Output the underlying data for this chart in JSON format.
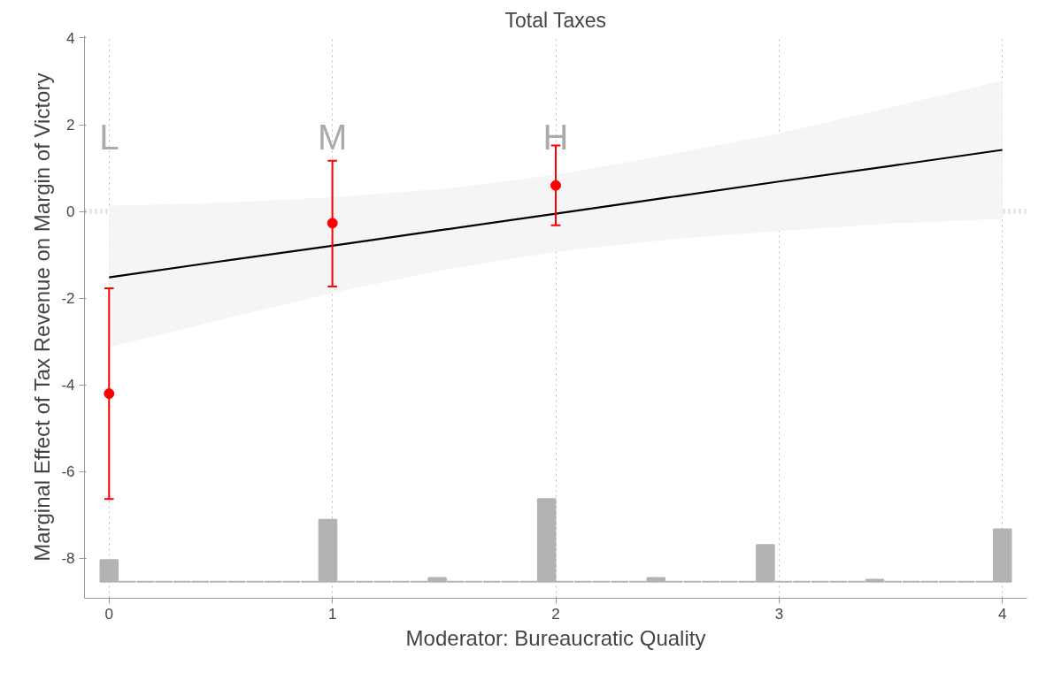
{
  "chart_data": {
    "type": "line",
    "title": "Total Taxes",
    "xlabel": "Moderator: Bureaucratic Quality",
    "ylabel": "Marginal Effect of Tax Revenue on Margin of Victory",
    "xlim": [
      -0.11,
      4.11
    ],
    "ylim": [
      -8.92,
      4.05
    ],
    "xticks": [
      0,
      1,
      2,
      3,
      4
    ],
    "yticks": [
      -8,
      -6,
      -4,
      -2,
      0,
      2,
      4
    ],
    "grid": "x",
    "ref_lines": [
      {
        "axis": "y",
        "value": 0,
        "color": "#dddddd",
        "line_style": "dotted"
      }
    ],
    "annotations": [
      "L",
      "M",
      "H"
    ],
    "series": [
      {
        "type": "bar",
        "color": "#b3b3b3",
        "x": [
          0,
          0.0816,
          0.1633,
          0.2449,
          0.3265,
          0.4082,
          0.4898,
          0.5714,
          0.6531,
          0.7347,
          0.8163,
          0.898,
          0.9796,
          1.0612,
          1.1429,
          1.2245,
          1.3061,
          1.3878,
          1.4694,
          1.551,
          1.6327,
          1.7143,
          1.7959,
          1.8776,
          1.9592,
          2.0408,
          2.1224,
          2.2041,
          2.2857,
          2.3673,
          2.449,
          2.5306,
          2.6122,
          2.6939,
          2.7755,
          2.8571,
          2.9388,
          3.0204,
          3.102,
          3.1837,
          3.2653,
          3.3469,
          3.4286,
          3.5102,
          3.5918,
          3.6735,
          3.7551,
          3.8367,
          3.9184,
          4.0
        ],
        "base": [
          -8.54,
          -8.54,
          -8.54,
          -8.54,
          -8.54,
          -8.54,
          -8.54,
          -8.54,
          -8.54,
          -8.54,
          -8.54,
          -8.54,
          -8.54,
          -8.54,
          -8.54,
          -8.54,
          -8.54,
          -8.54,
          -8.54,
          -8.54,
          -8.54,
          -8.54,
          -8.54,
          -8.54,
          -8.54,
          -8.54,
          -8.54,
          -8.54,
          -8.54,
          -8.54,
          -8.54,
          -8.54,
          -8.54,
          -8.54,
          -8.54,
          -8.54,
          -8.54,
          -8.54,
          -8.54,
          -8.54,
          -8.54,
          -8.54,
          -8.54,
          -8.54,
          -8.54,
          -8.54,
          -8.54,
          -8.54,
          -8.54,
          -8.54
        ],
        "values": [
          0.5,
          0,
          0,
          0,
          0,
          0,
          0,
          0,
          0,
          0,
          0,
          0,
          1.43,
          0,
          0,
          0,
          0,
          0,
          0.09,
          0,
          0,
          0,
          0,
          0,
          1.91,
          0,
          0,
          0,
          0,
          0,
          0.09,
          0,
          0,
          0,
          0,
          0,
          0.85,
          0,
          0,
          0,
          0,
          0,
          0.05,
          0,
          0,
          0,
          0,
          0,
          0,
          1.21
        ]
      },
      {
        "color": "#000000",
        "line_style": "solid",
        "x": [
          0,
          0.5,
          1,
          1.5,
          2,
          2.5,
          3,
          3.5,
          4
        ],
        "values": [
          -1.52,
          -1.15,
          -0.79,
          -0.42,
          -0.05,
          0.32,
          0.69,
          1.05,
          1.42
        ],
        "lower": [
          -3.13,
          -2.5,
          -1.88,
          -1.35,
          -0.93,
          -0.65,
          -0.45,
          -0.28,
          -0.17
        ],
        "upper": [
          0.13,
          0.2,
          0.33,
          0.52,
          0.85,
          1.3,
          1.8,
          2.4,
          3.02
        ]
      },
      {
        "type": "scatter",
        "color": "#ff0000",
        "marker": "circle",
        "x": [
          0,
          1,
          2
        ],
        "values": [
          -4.2,
          -0.27,
          0.6
        ],
        "errors": [
          [
            -6.63,
            -1.77
          ],
          [
            -1.73,
            1.17
          ],
          [
            -0.32,
            1.52
          ]
        ]
      }
    ]
  }
}
